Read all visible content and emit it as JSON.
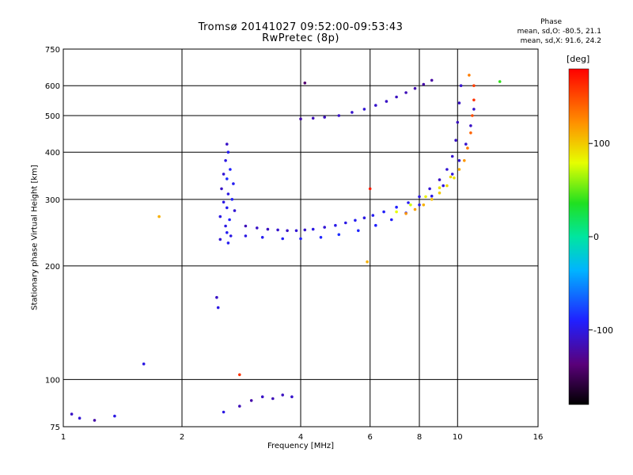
{
  "chart_data": {
    "type": "scatter",
    "title": "Tromsø 20141027 09:52:00-09:53:43",
    "subtitle": "RwPretec (8p)",
    "xlabel": "Frequency [MHz]",
    "ylabel": "Stationary phase Virtual Height [km]",
    "x_scale": "log",
    "y_scale": "log",
    "xlim": [
      1,
      16
    ],
    "ylim": [
      75,
      750
    ],
    "x_ticks": [
      1,
      2,
      4,
      6,
      8,
      10,
      16
    ],
    "y_ticks": [
      75,
      100,
      200,
      300,
      400,
      500,
      600,
      750
    ],
    "grid": true,
    "phase_stats": {
      "title": "Phase",
      "line_o": "mean, sd,O: -80.5, 21.1",
      "line_x": "mean, sd,X:  91.6, 24.2"
    },
    "colorbar": {
      "label": "[deg]",
      "range": [
        -180,
        180
      ],
      "ticks": [
        100,
        0,
        -100
      ]
    },
    "series": [
      {
        "name": "",
        "points": [
          [
            2.6,
            420,
            -110
          ],
          [
            2.62,
            400,
            -95
          ],
          [
            2.58,
            380,
            -100
          ],
          [
            2.65,
            360,
            -90
          ],
          [
            2.55,
            350,
            -105
          ],
          [
            2.6,
            340,
            -85
          ],
          [
            2.7,
            330,
            -95
          ],
          [
            2.52,
            320,
            -110
          ],
          [
            2.62,
            310,
            -100
          ],
          [
            2.68,
            300,
            -90
          ],
          [
            2.55,
            295,
            -100
          ],
          [
            2.6,
            285,
            -95
          ],
          [
            2.72,
            280,
            -105
          ],
          [
            2.5,
            270,
            -100
          ],
          [
            2.64,
            265,
            -90
          ],
          [
            2.58,
            255,
            -100
          ],
          [
            2.6,
            245,
            -95
          ],
          [
            2.66,
            240,
            -100
          ],
          [
            2.5,
            235,
            -105
          ],
          [
            2.62,
            230,
            -95
          ],
          [
            2.45,
            165,
            -110
          ],
          [
            2.47,
            155,
            -100
          ],
          [
            2.9,
            255,
            -115
          ],
          [
            3.1,
            252,
            -110
          ],
          [
            3.3,
            250,
            -112
          ],
          [
            3.5,
            249,
            -108
          ],
          [
            3.7,
            248,
            -110
          ],
          [
            3.9,
            248,
            -105
          ],
          [
            4.1,
            249,
            -108
          ],
          [
            4.3,
            250,
            -100
          ],
          [
            4.6,
            253,
            -105
          ],
          [
            4.9,
            256,
            -98
          ],
          [
            5.2,
            260,
            -100
          ],
          [
            5.5,
            264,
            -95
          ],
          [
            5.8,
            268,
            -100
          ],
          [
            6.1,
            272,
            -95
          ],
          [
            6.5,
            278,
            -92
          ],
          [
            7.0,
            286,
            -90
          ],
          [
            7.5,
            294,
            -95
          ],
          [
            8.0,
            305,
            -100
          ],
          [
            8.5,
            320,
            -105
          ],
          [
            9.0,
            338,
            -110
          ],
          [
            9.4,
            360,
            -105
          ],
          [
            9.7,
            390,
            -108
          ],
          [
            9.9,
            430,
            -110
          ],
          [
            10.0,
            480,
            -112
          ],
          [
            10.1,
            540,
            -110
          ],
          [
            10.2,
            600,
            -108
          ],
          [
            2.9,
            240,
            -100
          ],
          [
            3.2,
            238,
            -95
          ],
          [
            3.6,
            236,
            -92
          ],
          [
            4.0,
            236,
            -90
          ],
          [
            4.5,
            238,
            -88
          ],
          [
            5.0,
            242,
            -85
          ],
          [
            5.6,
            248,
            -88
          ],
          [
            6.2,
            256,
            -90
          ],
          [
            6.8,
            265,
            -92
          ],
          [
            7.4,
            276,
            -95
          ],
          [
            8.0,
            290,
            -98
          ],
          [
            8.6,
            306,
            -100
          ],
          [
            9.2,
            326,
            -102
          ],
          [
            9.7,
            350,
            -104
          ],
          [
            10.1,
            380,
            -106
          ],
          [
            10.5,
            420,
            -108
          ],
          [
            10.8,
            470,
            -110
          ],
          [
            11.0,
            520,
            -108
          ],
          [
            7.4,
            275,
            120
          ],
          [
            7.8,
            282,
            115
          ],
          [
            8.2,
            290,
            110
          ],
          [
            8.6,
            300,
            105
          ],
          [
            9.0,
            312,
            100
          ],
          [
            9.4,
            326,
            95
          ],
          [
            9.8,
            342,
            90
          ],
          [
            10.1,
            360,
            110
          ],
          [
            10.4,
            380,
            120
          ],
          [
            10.6,
            410,
            130
          ],
          [
            10.8,
            450,
            140
          ],
          [
            10.9,
            500,
            150
          ],
          [
            11.0,
            550,
            160
          ],
          [
            11.0,
            600,
            155
          ],
          [
            10.7,
            640,
            130
          ],
          [
            7.0,
            278,
            80
          ],
          [
            7.6,
            290,
            75
          ],
          [
            8.3,
            305,
            85
          ],
          [
            9.0,
            322,
            90
          ],
          [
            9.6,
            344,
            95
          ],
          [
            4.0,
            490,
            -120
          ],
          [
            4.3,
            492,
            -115
          ],
          [
            4.6,
            495,
            -112
          ],
          [
            5.0,
            500,
            -110
          ],
          [
            5.4,
            510,
            -108
          ],
          [
            5.8,
            520,
            -105
          ],
          [
            6.2,
            532,
            -108
          ],
          [
            6.6,
            545,
            -110
          ],
          [
            7.0,
            560,
            -112
          ],
          [
            7.4,
            575,
            -115
          ],
          [
            7.8,
            590,
            -118
          ],
          [
            8.2,
            605,
            -120
          ],
          [
            8.6,
            620,
            -122
          ],
          [
            4.1,
            610,
            -140
          ],
          [
            2.8,
            85,
            -115
          ],
          [
            2.55,
            82,
            -100
          ],
          [
            3.0,
            88,
            -120
          ],
          [
            3.2,
            90,
            -110
          ],
          [
            3.4,
            89,
            -115
          ],
          [
            3.6,
            91,
            -112
          ],
          [
            3.8,
            90,
            -108
          ],
          [
            1.05,
            81,
            -110
          ],
          [
            1.1,
            79,
            -105
          ],
          [
            1.2,
            78,
            -120
          ],
          [
            1.35,
            80,
            -100
          ],
          [
            1.6,
            110,
            -100
          ],
          [
            1.75,
            270,
            110
          ],
          [
            2.8,
            103,
            160
          ],
          [
            12.8,
            615,
            40
          ],
          [
            5.9,
            205,
            110
          ],
          [
            6.0,
            320,
            170
          ]
        ]
      }
    ]
  }
}
